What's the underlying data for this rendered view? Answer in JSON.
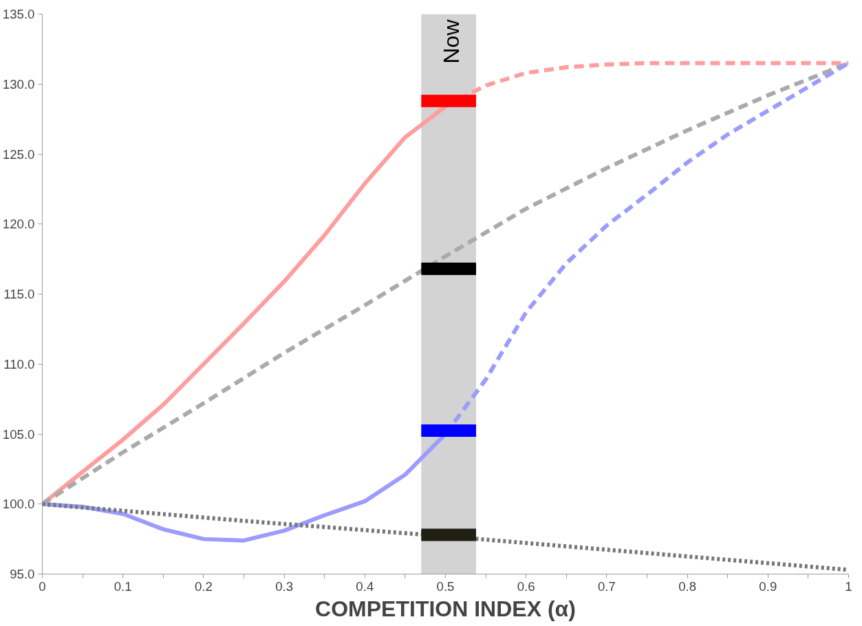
{
  "chart_data": {
    "type": "line",
    "xlabel": "COMPETITION INDEX (α)",
    "xlim": [
      0,
      1
    ],
    "ylim": [
      95,
      135
    ],
    "xticks": [
      0,
      {
        "value": 0.05,
        "label": null
      },
      {
        "value": 0.1,
        "label": "0.1"
      },
      {
        "value": 0.15,
        "label": null
      },
      {
        "value": 0.2,
        "label": "0.2"
      },
      {
        "value": 0.25,
        "label": null
      },
      {
        "value": 0.3,
        "label": "0.3"
      },
      {
        "value": 0.35,
        "label": null
      },
      {
        "value": 0.4,
        "label": "0.4"
      },
      {
        "value": 0.45,
        "label": null
      },
      {
        "value": 0.5,
        "label": "0.5"
      },
      {
        "value": 0.55,
        "label": null
      },
      {
        "value": 0.6,
        "label": "0.6"
      },
      {
        "value": 0.65,
        "label": null
      },
      {
        "value": 0.7,
        "label": "0.7"
      },
      {
        "value": 0.75,
        "label": null
      },
      {
        "value": 0.8,
        "label": "0.8"
      },
      {
        "value": 0.85,
        "label": null
      },
      {
        "value": 0.9,
        "label": "0.9"
      },
      {
        "value": 0.95,
        "label": null
      },
      1
    ],
    "yticks": [
      {
        "value": 95,
        "label": "95.0"
      },
      {
        "value": 100,
        "label": "100.0"
      },
      {
        "value": 105,
        "label": "105.0"
      },
      {
        "value": 110,
        "label": "110.0"
      },
      {
        "value": 115,
        "label": "115.0"
      },
      {
        "value": 120,
        "label": "120.0"
      },
      {
        "value": 125,
        "label": "125.0"
      },
      {
        "value": 130,
        "label": "130.0"
      },
      {
        "value": 135,
        "label": "135.0"
      }
    ],
    "grid": false,
    "bands": [
      {
        "axis": "x",
        "from": 0.47,
        "to": 0.538,
        "label": "Now",
        "color": "#d3d3d3"
      }
    ],
    "series": [
      {
        "color": "#ff9e9e",
        "line_style": "solid",
        "x": [
          0,
          0.05,
          0.1,
          0.15,
          0.2,
          0.25,
          0.3,
          0.35,
          0.4,
          0.45,
          0.5
        ],
        "values": [
          100,
          102.3,
          104.6,
          107.1,
          110.0,
          112.9,
          115.9,
          119.2,
          122.9,
          126.2,
          128.4
        ]
      },
      {
        "color": "#ff9e9e",
        "line_style": "dashed",
        "x": [
          0.5,
          0.55,
          0.6,
          0.65,
          0.7,
          0.75,
          0.8,
          0.85,
          0.9,
          0.95,
          1
        ],
        "values": [
          128.4,
          129.9,
          130.8,
          131.2,
          131.4,
          131.5,
          131.5,
          131.5,
          131.5,
          131.5,
          131.5
        ]
      },
      {
        "color": "#aaaaaa",
        "line_style": "dashed",
        "x": [
          0,
          0.1,
          0.2,
          0.3,
          0.4,
          0.5,
          0.6,
          0.7,
          0.8,
          0.9,
          1
        ],
        "values": [
          100,
          103.7,
          107.2,
          110.8,
          114.2,
          117.7,
          121.1,
          124.0,
          126.7,
          129.2,
          131.5
        ]
      },
      {
        "color": "#9c9cff",
        "line_style": "solid",
        "x": [
          0,
          0.05,
          0.1,
          0.15,
          0.2,
          0.25,
          0.3,
          0.35,
          0.4,
          0.45,
          0.5
        ],
        "values": [
          100,
          99.8,
          99.3,
          98.2,
          97.5,
          97.4,
          98.1,
          99.2,
          100.2,
          102.1,
          105.0
        ]
      },
      {
        "color": "#9c9cff",
        "line_style": "dashed",
        "x": [
          0.5,
          0.55,
          0.6,
          0.65,
          0.7,
          0.75,
          0.8,
          0.85,
          0.9,
          0.95,
          1
        ],
        "values": [
          105.0,
          108.9,
          113.7,
          117.2,
          119.9,
          122.1,
          124.4,
          126.4,
          128.1,
          129.8,
          131.5
        ]
      },
      {
        "color": "#777777",
        "line_style": "dotted",
        "x": [
          0,
          0.25,
          0.5,
          0.75,
          1
        ],
        "values": [
          100,
          98.8,
          97.7,
          96.5,
          95.3
        ]
      },
      {
        "color": "#ff0000",
        "line_style": "solid",
        "x": [
          0.47,
          0.538
        ],
        "values": [
          128.8,
          128.8
        ]
      },
      {
        "color": "#000000",
        "line_style": "solid",
        "x": [
          0.47,
          0.538
        ],
        "values": [
          116.8,
          116.8
        ]
      },
      {
        "color": "#0000ff",
        "line_style": "solid",
        "x": [
          0.47,
          0.538
        ],
        "values": [
          105.25,
          105.25
        ]
      },
      {
        "color": "#1f1f14",
        "line_style": "solid",
        "x": [
          0.47,
          0.538
        ],
        "values": [
          97.8,
          97.8
        ]
      }
    ]
  }
}
